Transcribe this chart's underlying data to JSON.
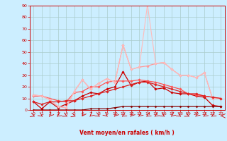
{
  "title": "",
  "xlabel": "Vent moyen/en rafales ( km/h )",
  "xlim": [
    -0.5,
    23.5
  ],
  "ylim": [
    0,
    90
  ],
  "yticks": [
    0,
    10,
    20,
    30,
    40,
    50,
    60,
    70,
    80,
    90
  ],
  "xticks": [
    0,
    1,
    2,
    3,
    4,
    5,
    6,
    7,
    8,
    9,
    10,
    11,
    12,
    13,
    14,
    15,
    16,
    17,
    18,
    19,
    20,
    21,
    22,
    23
  ],
  "bg_color": "#cceeff",
  "grid_color": "#aacccc",
  "series": [
    {
      "x": [
        0,
        1,
        2,
        3,
        4,
        5,
        6,
        7,
        8,
        9,
        10,
        11,
        12,
        13,
        14,
        15,
        16,
        17,
        18,
        19,
        20,
        21,
        22,
        23
      ],
      "y": [
        7,
        1,
        7,
        2,
        5,
        8,
        12,
        15,
        14,
        18,
        20,
        33,
        21,
        24,
        25,
        18,
        19,
        15,
        14,
        14,
        12,
        11,
        4,
        3
      ],
      "color": "#cc0000",
      "lw": 0.9,
      "marker": "D",
      "ms": 1.8
    },
    {
      "x": [
        0,
        1,
        2,
        3,
        4,
        5,
        6,
        7,
        8,
        9,
        10,
        11,
        12,
        13,
        14,
        15,
        16,
        17,
        18,
        19,
        20,
        21,
        22,
        23
      ],
      "y": [
        12,
        12,
        10,
        8,
        7,
        15,
        16,
        20,
        20,
        24,
        25,
        25,
        25,
        26,
        25,
        24,
        22,
        20,
        18,
        14,
        13,
        12,
        11,
        10
      ],
      "color": "#ff5555",
      "lw": 0.9,
      "marker": "D",
      "ms": 1.8
    },
    {
      "x": [
        0,
        1,
        2,
        3,
        4,
        5,
        6,
        7,
        8,
        9,
        10,
        11,
        12,
        13,
        14,
        15,
        16,
        17,
        18,
        19,
        20,
        21,
        22,
        23
      ],
      "y": [
        13,
        12,
        9,
        3,
        2,
        16,
        26,
        18,
        23,
        27,
        24,
        56,
        35,
        37,
        38,
        40,
        41,
        35,
        30,
        30,
        28,
        32,
        10,
        10
      ],
      "color": "#ff9999",
      "lw": 0.9,
      "marker": "D",
      "ms": 1.8
    },
    {
      "x": [
        0,
        1,
        2,
        3,
        4,
        5,
        6,
        7,
        8,
        9,
        10,
        11,
        12,
        13,
        14,
        15,
        16,
        17,
        18,
        19,
        20,
        21,
        22,
        23
      ],
      "y": [
        13,
        12,
        9,
        3,
        2,
        16,
        26,
        18,
        23,
        27,
        24,
        56,
        35,
        37,
        91,
        40,
        41,
        35,
        30,
        30,
        28,
        32,
        10,
        10
      ],
      "color": "#ffbbbb",
      "lw": 0.8,
      "marker": "D",
      "ms": 1.5
    },
    {
      "x": [
        0,
        1,
        2,
        3,
        4,
        5,
        6,
        7,
        8,
        9,
        10,
        11,
        12,
        13,
        14,
        15,
        16,
        17,
        18,
        19,
        20,
        21,
        22,
        23
      ],
      "y": [
        0,
        0,
        0,
        0,
        0,
        0,
        0,
        1,
        1,
        1,
        2,
        3,
        3,
        3,
        3,
        3,
        3,
        3,
        3,
        3,
        3,
        3,
        3,
        3
      ],
      "color": "#880000",
      "lw": 0.9,
      "marker": "D",
      "ms": 1.5
    },
    {
      "x": [
        0,
        1,
        2,
        3,
        4,
        5,
        6,
        7,
        8,
        9,
        10,
        11,
        12,
        13,
        14,
        15,
        16,
        17,
        18,
        19,
        20,
        21,
        22,
        23
      ],
      "y": [
        7,
        5,
        7,
        7,
        8,
        8,
        10,
        12,
        14,
        16,
        18,
        20,
        22,
        24,
        24,
        22,
        20,
        18,
        16,
        14,
        14,
        12,
        11,
        10
      ],
      "color": "#dd2222",
      "lw": 0.9,
      "marker": "D",
      "ms": 1.8
    }
  ],
  "arrow_angles": [
    135,
    150,
    200,
    210,
    140,
    130,
    195,
    205,
    145,
    155,
    200,
    215,
    200,
    205,
    215,
    210,
    145,
    205,
    145,
    140,
    205,
    210,
    215,
    270
  ]
}
